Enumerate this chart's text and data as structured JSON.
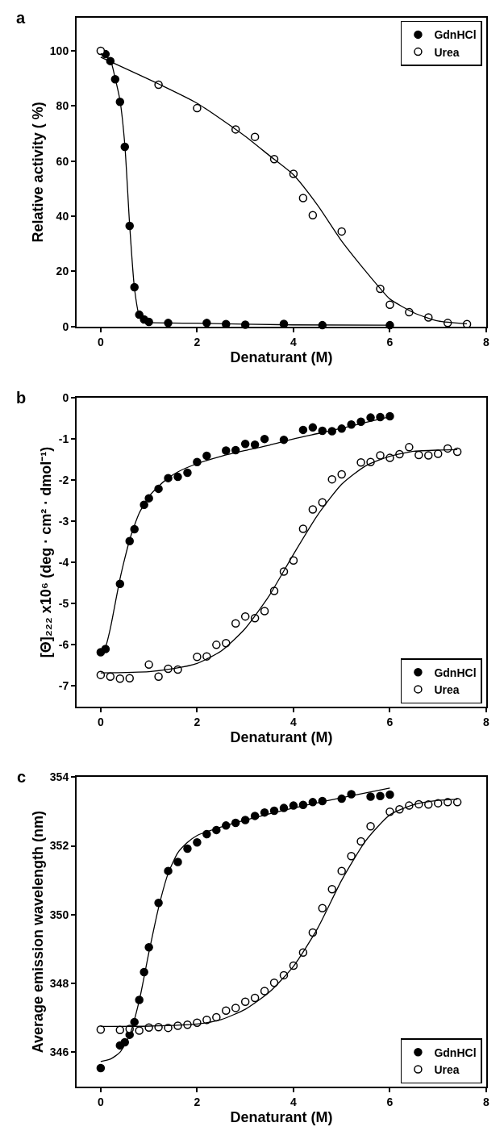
{
  "chart_data": [
    {
      "type": "scatter",
      "title": "a",
      "xlabel": "Denaturant (M)",
      "ylabel": "Relative activity ( %)",
      "xlim": [
        -0.5,
        8
      ],
      "xticks": [
        0,
        2,
        4,
        6,
        8
      ],
      "ylim": [
        0,
        112
      ],
      "yticks": [
        0,
        20,
        40,
        60,
        80,
        100
      ],
      "legend": "top right",
      "series": [
        {
          "name": "GdnHCl",
          "marker": "circle",
          "color": "#000000",
          "x": [
            0.1,
            0.2,
            0.3,
            0.4,
            0.5,
            0.6,
            0.7,
            0.8,
            0.9,
            1.0,
            1.4,
            2.2,
            2.6,
            3.0,
            3.8,
            4.6,
            6.0
          ],
          "values": [
            98.8,
            96.3,
            89.7,
            81.5,
            65.2,
            36.5,
            14.3,
            4.3,
            2.6,
            1.7,
            1.3,
            1.3,
            0.9,
            0.7,
            1.0,
            0.5,
            0.5
          ]
        },
        {
          "name": "Urea",
          "marker": "circle",
          "color": "#ffffff",
          "x": [
            0,
            1.2,
            2.0,
            2.8,
            3.2,
            3.6,
            4.0,
            4.2,
            4.4,
            5.0,
            5.8,
            6.0,
            6.4,
            6.8,
            7.2,
            7.6
          ],
          "values": [
            100,
            87.7,
            79.2,
            71.5,
            68.8,
            60.7,
            55.4,
            46.6,
            40.4,
            34.5,
            13.7,
            7.9,
            5.2,
            3.3,
            1.3,
            0.9
          ]
        },
        {
          "type": "line",
          "marker": "none",
          "color": "#000000",
          "x": [
            0,
            0.2,
            0.3,
            0.4,
            0.5,
            0.6,
            0.7,
            0.8,
            0.9,
            1.0,
            2.0,
            4.0,
            6.0
          ],
          "values": [
            99,
            96.5,
            90,
            82,
            66,
            37,
            14,
            4,
            2,
            1.5,
            1.2,
            0.6,
            0.5
          ]
        },
        {
          "type": "line",
          "marker": "none",
          "color": "#000000",
          "x": [
            0,
            1.2,
            2.0,
            3.0,
            3.5,
            4.0,
            4.5,
            5.0,
            5.5,
            5.8,
            6.0,
            6.5,
            7.0,
            7.6
          ],
          "values": [
            97.7,
            88,
            81,
            69,
            62,
            55,
            44,
            31,
            20,
            13.8,
            10,
            5,
            2,
            1
          ]
        }
      ]
    },
    {
      "type": "scatter",
      "title": "b",
      "xlabel": "Denaturant (M)",
      "ylabel": "[Θ]₂₂₂ x10⁶ (deg · cm² · dmol⁻¹)",
      "xlim": [
        -0.5,
        8
      ],
      "xticks": [
        0,
        2,
        4,
        6,
        8
      ],
      "ylim": [
        -7.5,
        0
      ],
      "yticks": [
        -7,
        -6,
        -5,
        -4,
        -3,
        -2,
        -1,
        0
      ],
      "legend": "bottom right",
      "series": [
        {
          "name": "GdnHCl",
          "marker": "circle",
          "color": "#000000",
          "x": [
            0,
            0.1,
            0.4,
            0.6,
            0.7,
            0.9,
            1.0,
            1.2,
            1.4,
            1.6,
            1.8,
            2.0,
            2.2,
            2.6,
            2.8,
            3.0,
            3.2,
            3.4,
            3.8,
            4.2,
            4.4,
            4.6,
            4.8,
            5.0,
            5.2,
            5.4,
            5.6,
            5.8,
            6.0
          ],
          "values": [
            -6.18,
            -6.1,
            -4.52,
            -3.48,
            -3.19,
            -2.6,
            -2.44,
            -2.21,
            -1.95,
            -1.92,
            -1.82,
            -1.56,
            -1.41,
            -1.28,
            -1.27,
            -1.12,
            -1.14,
            -1.0,
            -1.02,
            -0.78,
            -0.72,
            -0.8,
            -0.81,
            -0.75,
            -0.65,
            -0.58,
            -0.48,
            -0.47,
            -0.45
          ]
        },
        {
          "name": "Urea",
          "marker": "circle",
          "color": "#ffffff",
          "x": [
            0,
            0.2,
            0.4,
            0.6,
            1.0,
            1.2,
            1.4,
            1.6,
            2.0,
            2.2,
            2.4,
            2.6,
            2.8,
            3.0,
            3.2,
            3.4,
            3.6,
            3.8,
            4.0,
            4.2,
            4.4,
            4.6,
            4.8,
            5.0,
            5.4,
            5.6,
            5.8,
            6.0,
            6.2,
            6.4,
            6.6,
            6.8,
            7.0,
            7.2,
            7.4
          ],
          "values": [
            -6.73,
            -6.77,
            -6.82,
            -6.81,
            -6.48,
            -6.77,
            -6.58,
            -6.6,
            -6.29,
            -6.28,
            -6.0,
            -5.96,
            -5.48,
            -5.31,
            -5.35,
            -5.18,
            -4.69,
            -4.22,
            -3.95,
            -3.18,
            -2.71,
            -2.54,
            -1.98,
            -1.86,
            -1.57,
            -1.56,
            -1.4,
            -1.46,
            -1.37,
            -1.2,
            -1.39,
            -1.4,
            -1.36,
            -1.23,
            -1.31
          ]
        },
        {
          "type": "line",
          "marker": "none",
          "color": "#000000",
          "x": [
            0,
            0.1,
            0.2,
            0.3,
            0.4,
            0.5,
            0.6,
            0.7,
            0.8,
            1.0,
            1.2,
            1.4,
            1.6,
            2.0,
            2.5,
            3.0,
            3.5,
            4.0,
            4.5,
            5.0,
            5.5,
            6.0
          ],
          "values": [
            -6.2,
            -6.05,
            -5.6,
            -5.0,
            -4.4,
            -3.9,
            -3.45,
            -3.1,
            -2.8,
            -2.4,
            -2.15,
            -1.95,
            -1.8,
            -1.6,
            -1.42,
            -1.28,
            -1.15,
            -1.0,
            -0.87,
            -0.74,
            -0.6,
            -0.46
          ]
        },
        {
          "type": "line",
          "marker": "none",
          "color": "#000000",
          "x": [
            0,
            1.0,
            1.5,
            2.0,
            2.5,
            3.0,
            3.5,
            4.0,
            4.5,
            5.0,
            5.5,
            6.0,
            6.5,
            7.0,
            7.4
          ],
          "values": [
            -6.68,
            -6.65,
            -6.58,
            -6.45,
            -6.15,
            -5.6,
            -4.8,
            -3.8,
            -2.85,
            -2.1,
            -1.65,
            -1.42,
            -1.3,
            -1.27,
            -1.26
          ]
        }
      ]
    },
    {
      "type": "scatter",
      "title": "c",
      "xlabel": "Denaturant (M)",
      "ylabel": "Average emission wavelength (nm)",
      "xlim": [
        -0.5,
        8
      ],
      "xticks": [
        0,
        2,
        4,
        6,
        8
      ],
      "ylim": [
        345,
        354
      ],
      "yticks": [
        346,
        348,
        350,
        352,
        354
      ],
      "legend": "bottom right",
      "series": [
        {
          "name": "GdnHCl",
          "marker": "circle",
          "color": "#000000",
          "x": [
            0,
            0.4,
            0.5,
            0.6,
            0.7,
            0.8,
            0.9,
            1.0,
            1.2,
            1.4,
            1.6,
            1.8,
            2.0,
            2.2,
            2.4,
            2.6,
            2.8,
            3.0,
            3.2,
            3.4,
            3.6,
            3.8,
            4.0,
            4.2,
            4.4,
            4.6,
            5.0,
            5.2,
            5.6,
            5.8,
            6.0
          ],
          "values": [
            345.54,
            346.2,
            346.29,
            346.51,
            346.88,
            347.52,
            348.33,
            349.05,
            350.34,
            351.27,
            351.53,
            351.92,
            352.1,
            352.34,
            352.46,
            352.59,
            352.67,
            352.75,
            352.87,
            352.97,
            353.02,
            353.1,
            353.17,
            353.19,
            353.27,
            353.3,
            353.37,
            353.5,
            353.43,
            353.45,
            353.49
          ]
        },
        {
          "name": "Urea",
          "marker": "circle",
          "color": "#ffffff",
          "x": [
            0,
            0.4,
            0.6,
            0.8,
            1.0,
            1.2,
            1.4,
            1.6,
            1.8,
            2.0,
            2.2,
            2.4,
            2.6,
            2.8,
            3.0,
            3.2,
            3.4,
            3.6,
            3.8,
            4.0,
            4.2,
            4.4,
            4.6,
            4.8,
            5.0,
            5.2,
            5.4,
            5.6,
            6.0,
            6.2,
            6.4,
            6.6,
            6.8,
            7.0,
            7.2,
            7.4
          ],
          "values": [
            346.66,
            346.65,
            346.68,
            346.63,
            346.72,
            346.73,
            346.71,
            346.77,
            346.8,
            346.86,
            346.94,
            347.02,
            347.21,
            347.29,
            347.47,
            347.58,
            347.78,
            348.02,
            348.24,
            348.52,
            348.9,
            349.48,
            350.19,
            350.74,
            351.27,
            351.7,
            352.13,
            352.57,
            352.99,
            353.06,
            353.17,
            353.21,
            353.2,
            353.24,
            353.27,
            353.27
          ]
        },
        {
          "type": "line",
          "marker": "none",
          "color": "#000000",
          "x": [
            0,
            0.2,
            0.4,
            0.6,
            0.8,
            1.0,
            1.2,
            1.4,
            1.6,
            1.8,
            2.0,
            2.5,
            3.0,
            4.0,
            5.0,
            6.0
          ],
          "values": [
            345.73,
            345.8,
            346.0,
            346.5,
            347.5,
            348.9,
            350.2,
            351.2,
            351.8,
            352.1,
            352.3,
            352.55,
            352.75,
            353.1,
            353.4,
            353.68
          ]
        },
        {
          "type": "line",
          "marker": "none",
          "color": "#000000",
          "x": [
            0,
            1.0,
            2.0,
            2.5,
            3.0,
            3.5,
            4.0,
            4.5,
            5.0,
            5.5,
            6.0,
            6.5,
            7.0,
            7.4
          ],
          "values": [
            346.75,
            346.76,
            346.82,
            346.95,
            347.25,
            347.75,
            348.5,
            349.6,
            351.0,
            352.15,
            352.9,
            353.2,
            353.32,
            353.35
          ]
        }
      ]
    }
  ]
}
